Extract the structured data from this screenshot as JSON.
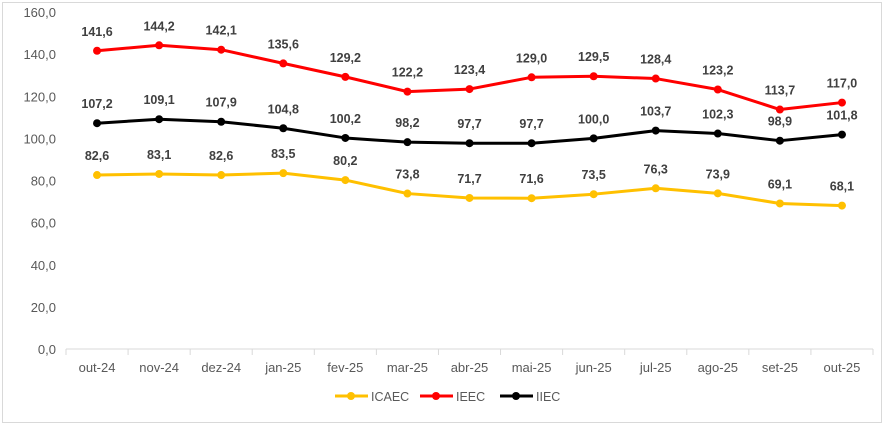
{
  "chart_data": {
    "type": "line",
    "title": "",
    "xlabel": "",
    "ylabel": "",
    "ylim": [
      0,
      160
    ],
    "yticks": [
      "0,0",
      "20,0",
      "40,0",
      "60,0",
      "80,0",
      "100,0",
      "120,0",
      "140,0",
      "160,0"
    ],
    "categories": [
      "out-24",
      "nov-24",
      "dez-24",
      "jan-25",
      "fev-25",
      "mar-25",
      "abr-25",
      "mai-25",
      "jun-25",
      "jul-25",
      "ago-25",
      "set-25",
      "out-25"
    ],
    "legend_position": "bottom",
    "grid": false,
    "series": [
      {
        "name": "ICAEC",
        "color": "#ffc000",
        "values": [
          82.6,
          83.1,
          82.6,
          83.5,
          80.2,
          73.8,
          71.7,
          71.6,
          73.5,
          76.3,
          73.9,
          69.1,
          68.1
        ],
        "labels": [
          "82,6",
          "83,1",
          "82,6",
          "83,5",
          "80,2",
          "73,8",
          "71,7",
          "71,6",
          "73,5",
          "76,3",
          "73,9",
          "69,1",
          "68,1"
        ]
      },
      {
        "name": "IEEC",
        "color": "#ff0000",
        "values": [
          141.6,
          144.2,
          142.1,
          135.6,
          129.2,
          122.2,
          123.4,
          129.0,
          129.5,
          128.4,
          123.2,
          113.7,
          117.0
        ],
        "labels": [
          "141,6",
          "144,2",
          "142,1",
          "135,6",
          "129,2",
          "122,2",
          "123,4",
          "129,0",
          "129,5",
          "128,4",
          "123,2",
          "113,7",
          "117,0"
        ]
      },
      {
        "name": "IIEC",
        "color": "#000000",
        "values": [
          107.2,
          109.1,
          107.9,
          104.8,
          100.2,
          98.2,
          97.7,
          97.7,
          100.0,
          103.7,
          102.3,
          98.9,
          101.8
        ],
        "labels": [
          "107,2",
          "109,1",
          "107,9",
          "104,8",
          "100,2",
          "98,2",
          "97,7",
          "97,7",
          "100,0",
          "103,7",
          "102,3",
          "98,9",
          "101,8"
        ]
      }
    ]
  }
}
